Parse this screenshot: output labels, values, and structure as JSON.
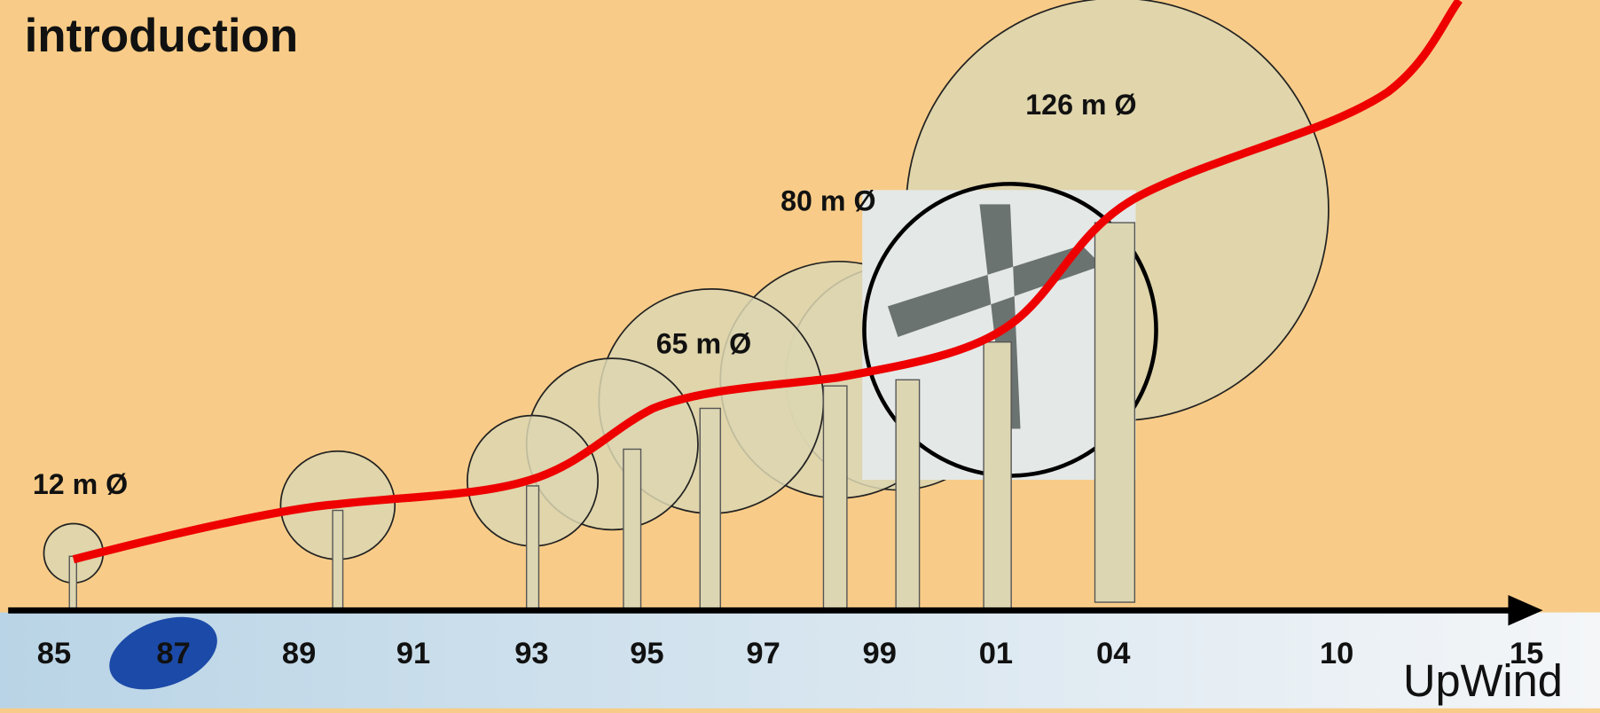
{
  "title": "introduction",
  "diameter_labels": [
    "12 m Ø",
    "65 m Ø",
    "80 m Ø",
    "126 m Ø"
  ],
  "years": [
    "85",
    "87",
    "89",
    "91",
    "93",
    "95",
    "97",
    "99",
    "01",
    "04",
    "10",
    "15"
  ],
  "brand": "UpWind"
}
